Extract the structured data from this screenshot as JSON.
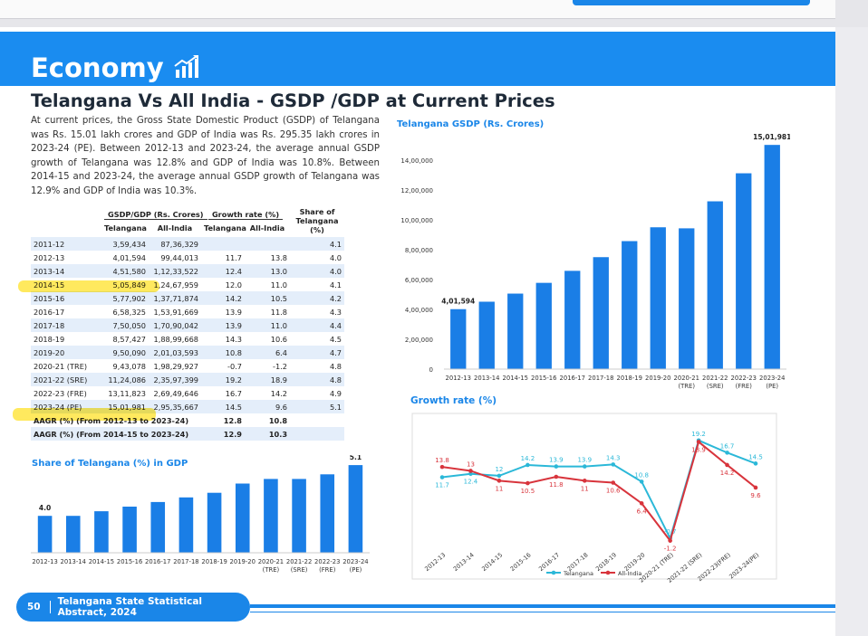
{
  "header": {
    "section": "Economy",
    "title": "Telangana Vs All India - GSDP /GDP at Current Prices"
  },
  "intro": "At current prices, the Gross State Domestic Product (GSDP) of Telangana was Rs. 15.01 lakh crores and GDP of India was Rs. 295.35 lakh crores in 2023-24 (PE). Between 2012-13 and 2023-24, the average annual GSDP growth of Telangana was 12.8% and GDP of India was 10.8%. Between 2014-15 and 2023-24, the average annual GSDP growth of Telangana was 12.9% and GDP of India was 10.3%.",
  "table": {
    "group_headers": [
      "GSDP/GDP (Rs. Crores)",
      "Growth rate (%)"
    ],
    "share_header": "Share of Telangana (%)",
    "sub_headers": [
      "Telangana",
      "All-India",
      "Telangana",
      "All-India"
    ],
    "rows": [
      [
        "2011-12",
        "3,59,434",
        "87,36,329",
        null,
        null,
        "4.1"
      ],
      [
        "2012-13",
        "4,01,594",
        "99,44,013",
        "11.7",
        "13.8",
        "4.0"
      ],
      [
        "2013-14",
        "4,51,580",
        "1,12,33,522",
        "12.4",
        "13.0",
        "4.0"
      ],
      [
        "2014-15",
        "5,05,849",
        "1,24,67,959",
        "12.0",
        "11.0",
        "4.1"
      ],
      [
        "2015-16",
        "5,77,902",
        "1,37,71,874",
        "14.2",
        "10.5",
        "4.2"
      ],
      [
        "2016-17",
        "6,58,325",
        "1,53,91,669",
        "13.9",
        "11.8",
        "4.3"
      ],
      [
        "2017-18",
        "7,50,050",
        "1,70,90,042",
        "13.9",
        "11.0",
        "4.4"
      ],
      [
        "2018-19",
        "8,57,427",
        "1,88,99,668",
        "14.3",
        "10.6",
        "4.5"
      ],
      [
        "2019-20",
        "9,50,090",
        "2,01,03,593",
        "10.8",
        "6.4",
        "4.7"
      ],
      [
        "2020-21 (TRE)",
        "9,43,078",
        "1,98,29,927",
        "-0.7",
        "-1.2",
        "4.8"
      ],
      [
        "2021-22 (SRE)",
        "11,24,086",
        "2,35,97,399",
        "19.2",
        "18.9",
        "4.8"
      ],
      [
        "2022-23 (FRE)",
        "13,11,823",
        "2,69,49,646",
        "16.7",
        "14.2",
        "4.9"
      ],
      [
        "2023-24 (PE)",
        "15,01,981",
        "2,95,35,667",
        "14.5",
        "9.6",
        "5.1"
      ]
    ],
    "aagr_rows": [
      [
        "AAGR (%) (From 2012-13 to 2023-24)",
        "12.8",
        "10.8"
      ],
      [
        "AAGR (%) (From 2014-15 to 2023-24)",
        "12.9",
        "10.3"
      ]
    ]
  },
  "chart_data": [
    {
      "type": "bar",
      "title": "Telangana GSDP (Rs. Crores)",
      "categories": [
        "2012-13",
        "2013-14",
        "2014-15",
        "2015-16",
        "2016-17",
        "2017-18",
        "2018-19",
        "2019-20",
        "2020-21 (TRE)",
        "2021-22 (SRE)",
        "2022-23 (FRE)",
        "2023-24 (PE)"
      ],
      "values": [
        401594,
        451580,
        505849,
        577902,
        658325,
        750050,
        857427,
        950090,
        943078,
        1124086,
        1311823,
        1501981
      ],
      "value_labels": [
        "4,01,594",
        null,
        null,
        null,
        null,
        null,
        null,
        null,
        null,
        null,
        null,
        "15,01,981"
      ],
      "color": "#1a7ee6",
      "grid": false,
      "ylim": [
        0,
        1600000
      ],
      "yticks": [
        0,
        {
          "value": 200000,
          "label": "2,00,000"
        },
        {
          "value": 400000,
          "label": "4,00,000"
        },
        {
          "value": 600000,
          "label": "6,00,000"
        },
        {
          "value": 800000,
          "label": "8,00,000"
        },
        {
          "value": 1000000,
          "label": "10,00,000"
        },
        {
          "value": 1200000,
          "label": "12,00,000"
        },
        {
          "value": 1400000,
          "label": "14,00,000"
        }
      ]
    },
    {
      "type": "bar",
      "title": "Share of Telangana (%) in GDP",
      "categories": [
        "2012-13",
        "2013-14",
        "2014-15",
        "2015-16",
        "2016-17",
        "2017-18",
        "2018-19",
        "2019-20",
        "2020-21 (TRE)",
        "2021-22 (SRE)",
        "2022-23 (FRE)",
        "2023-24 (PE)"
      ],
      "values": [
        4.0,
        4.0,
        4.1,
        4.2,
        4.3,
        4.4,
        4.5,
        4.7,
        4.8,
        4.8,
        4.9,
        5.1
      ],
      "value_labels": [
        "4.0",
        null,
        null,
        null,
        null,
        null,
        null,
        null,
        null,
        null,
        null,
        "5.1"
      ],
      "color": "#1a7ee6",
      "ylim": [
        3.2,
        5.2
      ]
    },
    {
      "type": "line",
      "title": "Growth rate (%)",
      "categories": [
        "2012-13",
        "2013-14",
        "2014-15",
        "2015-16",
        "2016-17",
        "2017-18",
        "2018-19",
        "2019-20",
        "2020-21 (TRE)",
        "2021-22 (SRE)",
        "2022-23(FRE)",
        "2023-24(PE)"
      ],
      "series": [
        {
          "name": "Telangana",
          "color": "#2bb8d8",
          "values": [
            11.7,
            12.4,
            12.0,
            14.2,
            13.9,
            13.9,
            14.3,
            10.8,
            -0.7,
            19.2,
            16.7,
            14.5
          ]
        },
        {
          "name": "All-India",
          "color": "#d8343c",
          "values": [
            13.8,
            13.0,
            11.0,
            10.5,
            11.8,
            11.0,
            10.6,
            6.4,
            -1.2,
            18.9,
            14.2,
            9.6
          ]
        }
      ],
      "ylim": [
        -2,
        21
      ],
      "legend": "bottom"
    }
  ],
  "footer": {
    "page": "50",
    "text": "Telangana State Statistical Abstract, 2024"
  }
}
